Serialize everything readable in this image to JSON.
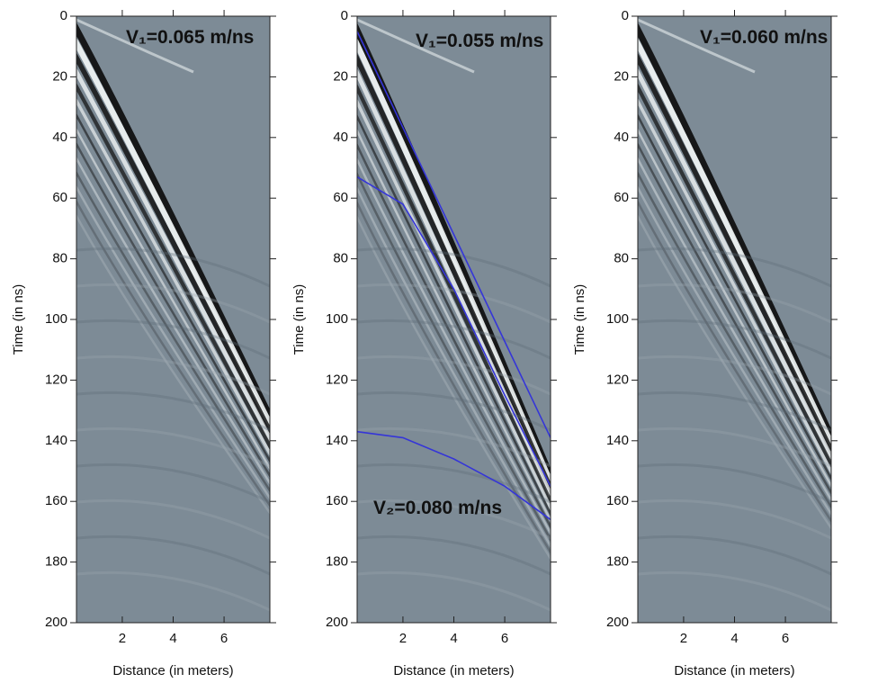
{
  "chart_data": [
    {
      "type": "radargram",
      "xlabel": "Distance (in meters)",
      "ylabel": "Time (in ns)",
      "xlim": [
        0.2,
        7.8
      ],
      "ylim": [
        0,
        200
      ],
      "xticks": [
        2,
        4,
        6
      ],
      "yticks": [
        0,
        20,
        40,
        60,
        80,
        100,
        120,
        140,
        160,
        180,
        200
      ],
      "annotations": [
        "V₁=0.065 m/ns"
      ]
    },
    {
      "type": "radargram",
      "xlabel": "Distance (in meters)",
      "ylabel": "Time (in ns)",
      "xlim": [
        0.2,
        7.8
      ],
      "ylim": [
        0,
        200
      ],
      "xticks": [
        2,
        4,
        6
      ],
      "yticks": [
        0,
        20,
        40,
        60,
        80,
        100,
        120,
        140,
        160,
        180,
        200
      ],
      "annotations": [
        "V₁=0.055 m/ns",
        "V₂=0.080 m/ns"
      ],
      "series": [
        {
          "color": "#3535d8",
          "x": [
            0.2,
            7.8
          ],
          "values": [
            5,
            139
          ]
        },
        {
          "color": "#3535d8",
          "x": [
            0.2,
            2,
            4,
            6,
            7.8
          ],
          "values": [
            53,
            62,
            90,
            125,
            155
          ]
        },
        {
          "color": "#3535d8",
          "x": [
            0.2,
            2,
            4,
            6,
            7.8
          ],
          "values": [
            137,
            139,
            146,
            155,
            166
          ]
        }
      ]
    },
    {
      "type": "radargram",
      "xlabel": "Distance (in meters)",
      "ylabel": "Time (in ns)",
      "xlim": [
        0.2,
        7.8
      ],
      "ylim": [
        0,
        200
      ],
      "xticks": [
        2,
        4,
        6
      ],
      "yticks": [
        0,
        20,
        40,
        60,
        80,
        100,
        120,
        140,
        160,
        180,
        200
      ],
      "annotations": [
        "V₁=0.060 m/ns"
      ]
    }
  ]
}
